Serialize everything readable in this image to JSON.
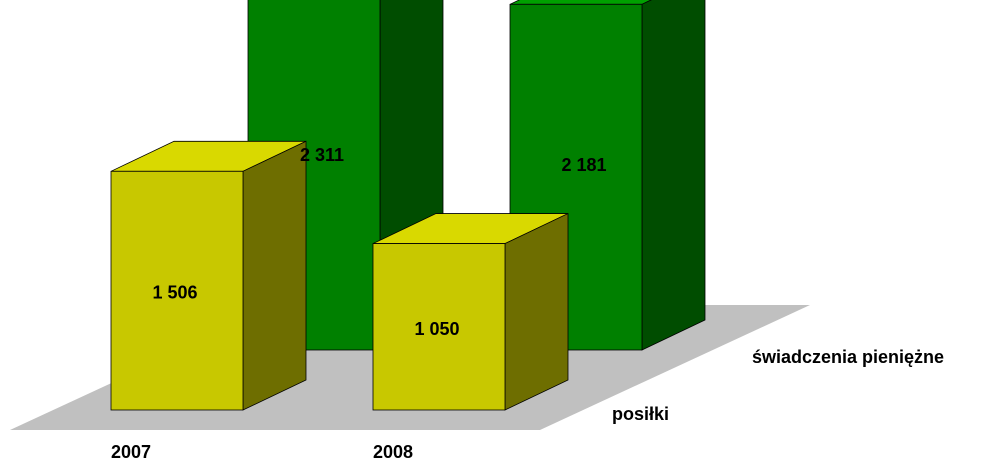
{
  "chart_data": {
    "type": "bar",
    "style": "3d-clustered-depth",
    "categories": [
      "2007",
      "2008"
    ],
    "series": [
      {
        "name": "posiłki",
        "values": [
          1506,
          1050
        ],
        "color": "#C8C800",
        "side_color": "#6E6E00",
        "top_color": "#D9D900"
      },
      {
        "name": "świadczenia pieniężne",
        "values": [
          2311,
          2181
        ],
        "color": "#008000",
        "side_color": "#004D00",
        "top_color": "#00A000"
      }
    ],
    "value_labels": [
      [
        "1 506",
        "1 050"
      ],
      [
        "2 311",
        "2 181"
      ]
    ],
    "floor_color": "#C0C0C0",
    "grid": false,
    "legend": "none"
  }
}
